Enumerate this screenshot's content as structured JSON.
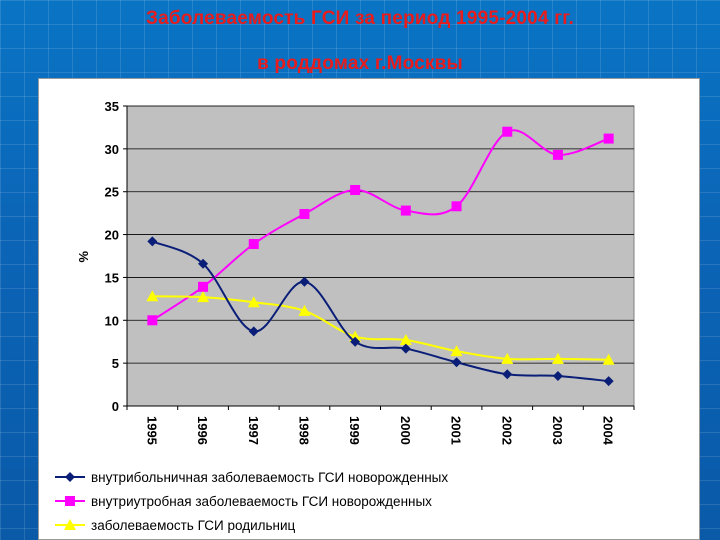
{
  "title": {
    "line1": "Заболеваемость ГСИ за период 1995-2004 гг.",
    "line2": "в роддомах г.Москвы"
  },
  "chart_data": {
    "type": "line",
    "x": [
      "1995",
      "1996",
      "1997",
      "1998",
      "1999",
      "2000",
      "2001",
      "2002",
      "2003",
      "2004"
    ],
    "ylabel": "%",
    "xlabel": "",
    "ylim": [
      0,
      35
    ],
    "yticks": [
      0,
      5,
      10,
      15,
      20,
      25,
      30,
      35
    ],
    "grid": true,
    "legend_position": "bottom",
    "plot_background": "#c0c0c0",
    "series": [
      {
        "name": "внутрибольничная заболеваемость ГСИ новорожденных",
        "color": "#0a1e78",
        "marker": "diamond",
        "values": [
          19.2,
          16.6,
          8.7,
          14.5,
          7.5,
          6.7,
          5.1,
          3.7,
          3.5,
          2.9
        ]
      },
      {
        "name": "внутриутробная заболеваемость ГСИ новорожденных",
        "color": "#ff00ff",
        "marker": "square",
        "values": [
          10.0,
          13.9,
          18.9,
          22.4,
          25.2,
          22.8,
          23.3,
          32.0,
          29.3,
          31.2
        ]
      },
      {
        "name": "заболеваемость ГСИ родильниц",
        "color": "#ffff00",
        "marker": "triangle",
        "values": [
          12.8,
          12.7,
          12.1,
          11.1,
          8.1,
          7.7,
          6.4,
          5.5,
          5.5,
          5.4
        ]
      }
    ]
  }
}
